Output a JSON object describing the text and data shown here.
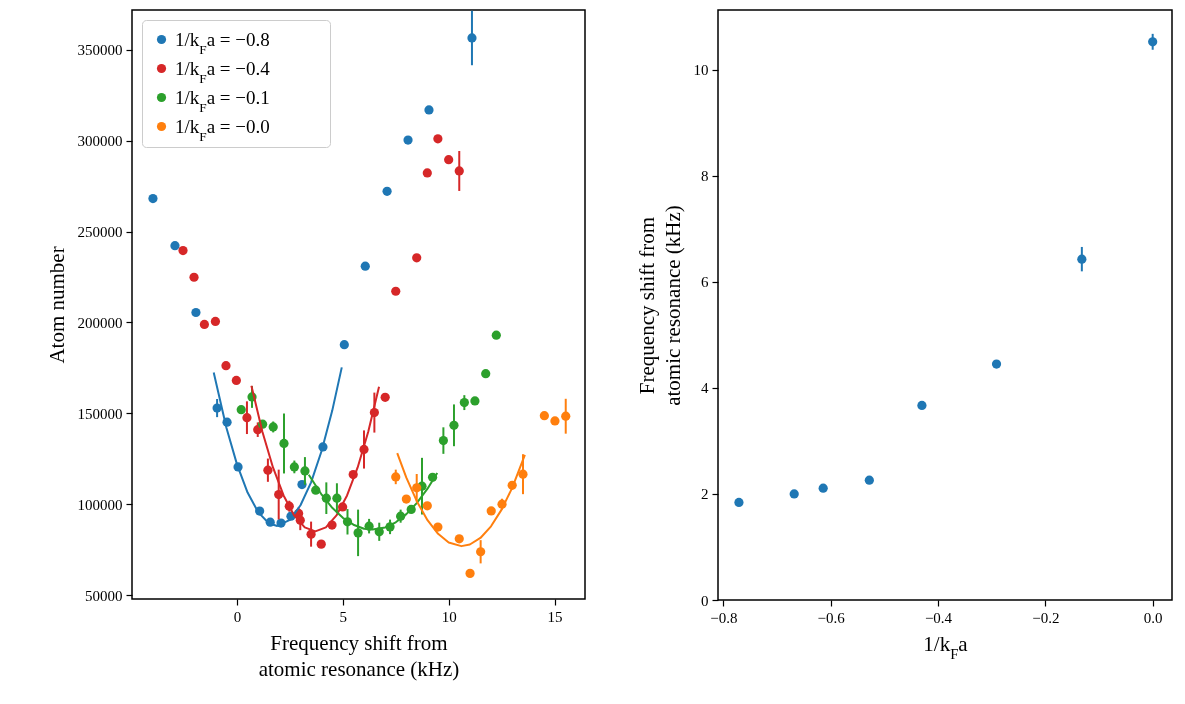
{
  "chart_data": [
    {
      "type": "scatter",
      "xlabel": "Frequency shift from\natomic resonance (kHz)",
      "ylabel": "Atom number",
      "xlim": [
        -4.96,
        16.44
      ],
      "ylim": [
        47800,
        372000
      ],
      "xticks": [
        0,
        5,
        10,
        15
      ],
      "yticks": [
        50000,
        100000,
        150000,
        200000,
        250000,
        300000,
        350000
      ],
      "grid": false,
      "legend": "top left",
      "marker": "circle",
      "series": [
        {
          "name": "1/k$_{F}$a = −0.8",
          "color": "#1f77b4",
          "x": [
            -3.97,
            -2.93,
            -1.94,
            -0.94,
            -0.47,
            0.05,
            1.07,
            1.57,
            2.08,
            2.55,
            3.07,
            4.06,
            5.07,
            6.06,
            7.09,
            8.08,
            9.07,
            11.1
          ],
          "values": [
            268200,
            242300,
            205500,
            152900,
            145100,
            120500,
            96200,
            90100,
            89600,
            93400,
            110800,
            131500,
            187800,
            231000,
            272200,
            300400,
            317000,
            356600
          ],
          "errors": [
            null,
            null,
            null,
            5000,
            null,
            null,
            null,
            null,
            null,
            null,
            null,
            null,
            null,
            null,
            null,
            null,
            null,
            15000
          ]
        },
        {
          "name": "1/k$_{F}$a = −0.4",
          "color": "#d62728",
          "x": [
            -2.55,
            -2.03,
            -1.54,
            -1.02,
            -0.52,
            -0.03,
            0.47,
            0.98,
            1.46,
            1.97,
            2.47,
            2.91,
            2.99,
            3.5,
            3.98,
            4.49,
            4.99,
            5.49,
            6.0,
            6.49,
            7.0,
            7.5,
            8.49,
            8.99,
            9.49,
            10.0,
            10.5
          ],
          "values": [
            239600,
            224900,
            198900,
            200600,
            176200,
            168100,
            147600,
            141000,
            118700,
            105300,
            98900,
            94900,
            91200,
            83500,
            78000,
            88500,
            98500,
            116300,
            130100,
            150400,
            158800,
            217200,
            235600,
            282300,
            301100,
            289600,
            283400
          ],
          "errors": [
            null,
            null,
            null,
            null,
            null,
            null,
            9000,
            4000,
            6400,
            13700,
            3000,
            3300,
            5500,
            6900,
            null,
            null,
            null,
            null,
            10500,
            11000,
            null,
            null,
            null,
            null,
            null,
            null,
            11000
          ]
        },
        {
          "name": "1/k$_{F}$a = −0.1",
          "color": "#2ca02c",
          "x": [
            0.2,
            0.71,
            1.21,
            1.71,
            2.22,
            2.71,
            3.21,
            3.72,
            4.22,
            4.72,
            5.22,
            5.72,
            6.24,
            6.72,
            7.23,
            7.73,
            8.23,
            8.74,
            9.24,
            9.75,
            10.25,
            10.74,
            11.24,
            11.75,
            12.25
          ],
          "values": [
            152000,
            159000,
            144000,
            142500,
            133400,
            120500,
            118300,
            107700,
            103300,
            103300,
            90300,
            84200,
            87900,
            84800,
            87500,
            93400,
            97100,
            109900,
            114800,
            135000,
            143400,
            155900,
            156800,
            171800,
            193000
          ],
          "errors": [
            null,
            6000,
            null,
            3000,
            16500,
            3500,
            7600,
            null,
            8700,
            8200,
            7000,
            12800,
            4000,
            5000,
            4000,
            3600,
            null,
            15600,
            null,
            7300,
            11500,
            4100,
            null,
            null,
            null
          ]
        },
        {
          "name": "1/k$_{F}$a = −0.0",
          "color": "#ff7f0e",
          "x": [
            7.5,
            8.0,
            8.49,
            8.99,
            9.49,
            10.5,
            11.01,
            11.51,
            12.01,
            12.52,
            13.0,
            13.51,
            14.52,
            15.02,
            15.53
          ],
          "values": [
            115000,
            102800,
            109000,
            99100,
            87400,
            80900,
            61900,
            73800,
            96300,
            100000,
            110400,
            116500,
            148700,
            145800,
            148400
          ],
          "errors": [
            4000,
            null,
            7600,
            null,
            null,
            null,
            null,
            6400,
            null,
            3000,
            null,
            11000,
            null,
            null,
            9600
          ]
        },
        {
          "type": "line",
          "marker": "none",
          "color": "#1f77b4",
          "x": [
            -1.1,
            -0.5,
            0,
            0.5,
            1,
            1.5,
            1.9,
            2.5,
            3,
            3.5,
            4,
            4.5,
            4.95
          ],
          "values": [
            172500,
            142100,
            121900,
            106400,
            95600,
            89500,
            88000,
            91400,
            99400,
            112000,
            129400,
            151500,
            175300
          ]
        },
        {
          "type": "line",
          "marker": "none",
          "color": "#d62728",
          "x": [
            0.68,
            1.2,
            1.7,
            2.2,
            2.7,
            3.2,
            3.7,
            4.2,
            4.7,
            5.2,
            5.7,
            6.2,
            6.71
          ],
          "values": [
            165200,
            139900,
            120200,
            104800,
            93800,
            87200,
            85000,
            87200,
            93800,
            104800,
            120200,
            139900,
            164600
          ]
        },
        {
          "type": "line",
          "marker": "none",
          "color": "#2ca02c",
          "x": [
            3.39,
            4,
            4.5,
            5,
            5.5,
            6,
            6.4,
            7,
            7.5,
            8,
            8.5,
            9,
            9.46
          ],
          "values": [
            116200,
            105200,
            98000,
            92500,
            88700,
            86500,
            86000,
            87200,
            90000,
            94500,
            100700,
            108500,
            117200
          ]
        },
        {
          "type": "line",
          "marker": "none",
          "color": "#ff7f0e",
          "x": [
            7.57,
            8,
            8.5,
            9,
            9.5,
            10,
            10.6,
            11,
            11.5,
            12,
            12.5,
            13,
            13.6
          ],
          "values": [
            128100,
            114600,
            101500,
            91200,
            83700,
            78900,
            76900,
            77800,
            81400,
            87800,
            97000,
            109000,
            127100
          ]
        }
      ]
    },
    {
      "type": "scatter",
      "xlabel": "1/k$_{F}$a",
      "ylabel": "Frequency shift from\natomic resonance (kHz)",
      "xlim": [
        -0.81,
        0.036
      ],
      "ylim": [
        0,
        11.13
      ],
      "xticks": [
        {
          "value": -0.8,
          "label": "−0.8"
        },
        {
          "value": -0.6,
          "label": "−0.6"
        },
        {
          "value": -0.4,
          "label": "−0.4"
        },
        {
          "value": -0.2,
          "label": "−0.2"
        },
        {
          "value": 0,
          "label": "0.0"
        }
      ],
      "yticks": [
        0,
        2,
        4,
        6,
        8,
        10
      ],
      "grid": false,
      "marker": "circle",
      "series": [
        {
          "color": "#1f77b4",
          "x": [
            -0.771,
            -0.668,
            -0.614,
            -0.528,
            -0.43,
            -0.291,
            -0.132,
            0.0
          ],
          "values": [
            1.84,
            2.0,
            2.11,
            2.26,
            3.67,
            4.45,
            6.43,
            10.53
          ],
          "errors": [
            null,
            null,
            null,
            null,
            null,
            null,
            0.23,
            0.15
          ]
        }
      ]
    }
  ]
}
